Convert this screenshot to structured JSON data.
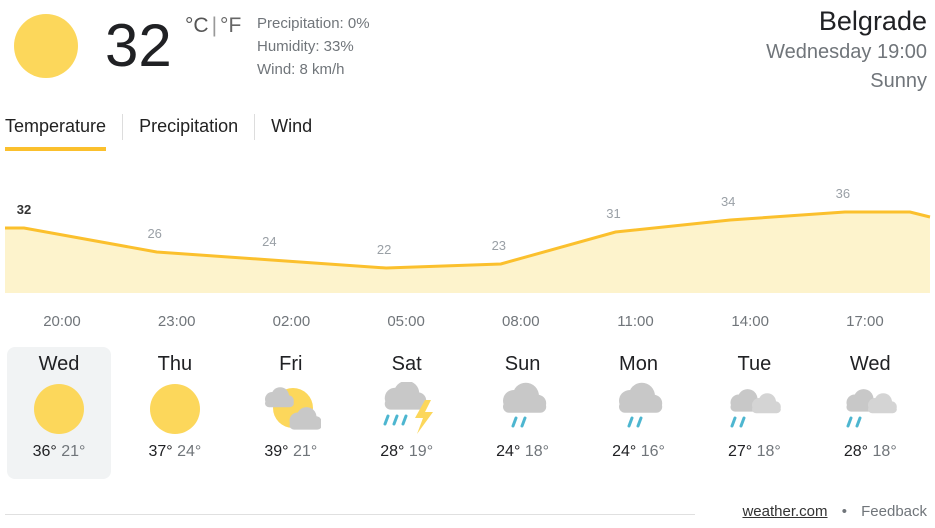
{
  "current": {
    "temperature": "32",
    "unit_c": "°C",
    "unit_sep": "|",
    "unit_f": "°F",
    "precipitation": "Precipitation: 0%",
    "humidity": "Humidity: 33%",
    "wind": "Wind: 8 km/h",
    "icon": "sun-icon"
  },
  "location": {
    "city": "Belgrade",
    "when": "Wednesday 19:00",
    "condition": "Sunny"
  },
  "tabs": [
    {
      "label": "Temperature",
      "active": true
    },
    {
      "label": "Precipitation"
    },
    {
      "label": "Wind"
    }
  ],
  "colors": {
    "accent": "#fbc02d",
    "sun": "#fcd75b",
    "area": "#fdf3cc",
    "cloud": "#c8c8c8",
    "rain": "#4db6d0"
  },
  "chart_data": {
    "type": "area",
    "x": [
      "20:00",
      "23:00",
      "02:00",
      "05:00",
      "08:00",
      "11:00",
      "14:00",
      "17:00"
    ],
    "values": [
      32,
      26,
      24,
      22,
      23,
      31,
      34,
      36
    ],
    "labels": [
      "32",
      "26",
      "24",
      "22",
      "23",
      "31",
      "34",
      "36"
    ]
  },
  "days": [
    {
      "name": "Wed",
      "icon": "sunny",
      "high": "36°",
      "low": "21°",
      "selected": true
    },
    {
      "name": "Thu",
      "icon": "sunny",
      "high": "37°",
      "low": "24°"
    },
    {
      "name": "Fri",
      "icon": "partly-cloudy",
      "high": "39°",
      "low": "21°"
    },
    {
      "name": "Sat",
      "icon": "thunderstorm",
      "high": "28°",
      "low": "19°"
    },
    {
      "name": "Sun",
      "icon": "rain",
      "high": "24°",
      "low": "18°"
    },
    {
      "name": "Mon",
      "icon": "rain",
      "high": "24°",
      "low": "16°"
    },
    {
      "name": "Tue",
      "icon": "showers",
      "high": "27°",
      "low": "18°"
    },
    {
      "name": "Wed",
      "icon": "showers",
      "high": "28°",
      "low": "18°"
    }
  ],
  "footer": {
    "source": "weather.com",
    "dot": "•",
    "feedback": "Feedback"
  }
}
